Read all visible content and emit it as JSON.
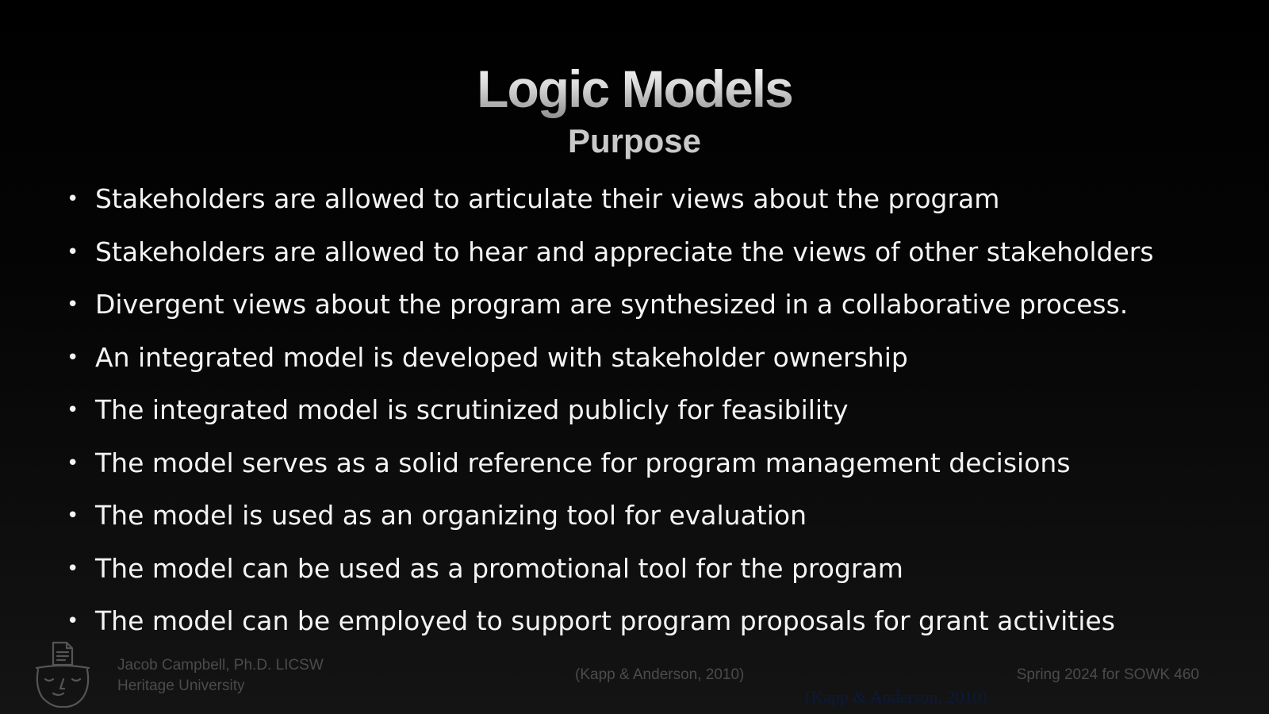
{
  "slide": {
    "title": "Logic Models",
    "subtitle": "Purpose",
    "bullet_symbol": "•",
    "bullets": [
      "Stakeholders are allowed to articulate their views about the program",
      "Stakeholders are allowed to hear and appreciate the views of other stakeholders",
      "Divergent views about the program are synthesized in a collaborative process.",
      "An integrated model is developed with stakeholder ownership",
      "The integrated model is scrutinized publicly for feasibility",
      "The model serves as a solid reference for program management decisions",
      "The model is used as an organizing tool for evaluation",
      "The model can be used as a promotional tool for the program",
      "The model can be employed to support program proposals for grant activities"
    ]
  },
  "footer": {
    "author": "Jacob Campbell, Ph.D. LICSW",
    "institution": "Heritage University",
    "citation": "(Kapp & Anderson, 2010)",
    "course": "Spring 2024 for SOWK 460",
    "ghost_citation": "(Kapp & Anderson, 2010)",
    "avatar_icon": "person-with-document-hat-icon"
  },
  "colors": {
    "background": "#000000",
    "text": "#f4f4f4",
    "subtitle": "#c9c9c9",
    "footer_text": "#4b4b4b",
    "ghost_citation": "#0c1a3a"
  }
}
